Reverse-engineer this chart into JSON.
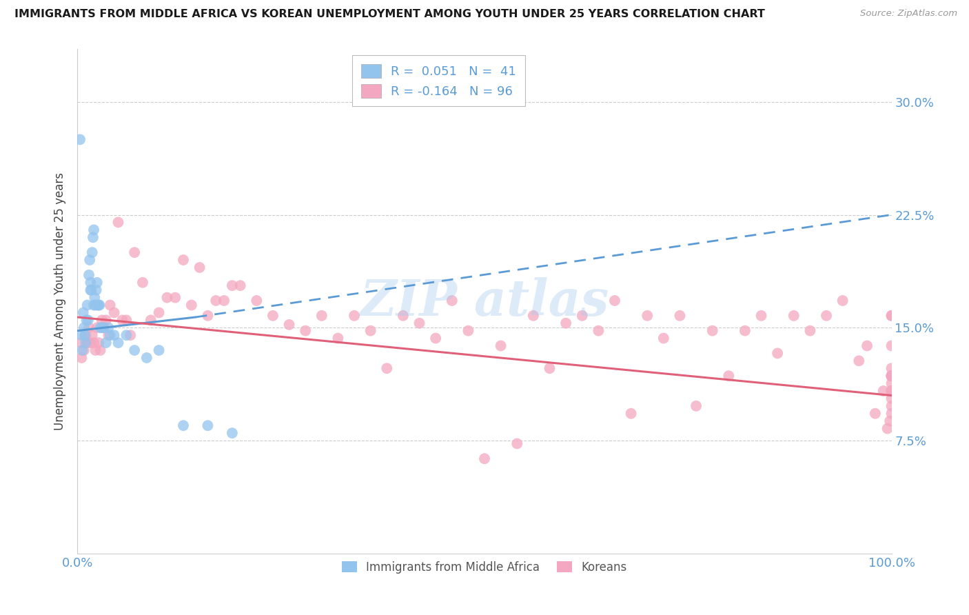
{
  "title": "IMMIGRANTS FROM MIDDLE AFRICA VS KOREAN UNEMPLOYMENT AMONG YOUTH UNDER 25 YEARS CORRELATION CHART",
  "source": "Source: ZipAtlas.com",
  "ylabel": "Unemployment Among Youth under 25 years",
  "ytick_labels": [
    "7.5%",
    "15.0%",
    "22.5%",
    "30.0%"
  ],
  "ytick_values": [
    0.075,
    0.15,
    0.225,
    0.3
  ],
  "ylim": [
    0.0,
    0.335
  ],
  "xlim": [
    0.0,
    1.0
  ],
  "legend_blue_text": "R =  0.051   N =  41",
  "legend_pink_text": "R = -0.164   N = 96",
  "blue_scatter_color": "#93C4EE",
  "pink_scatter_color": "#F4A7C0",
  "blue_line_color": "#5B9BD5",
  "pink_line_color": "#E0607A",
  "axis_tick_color": "#5B9BD5",
  "title_color": "#1A1A1A",
  "source_color": "#999999",
  "ylabel_color": "#444444",
  "grid_color": "#CCCCCC",
  "legend_border_color": "#BBBBBB",
  "watermark_color": "#AACCEE",
  "blue_scatter_x": [
    0.003,
    0.005,
    0.006,
    0.007,
    0.008,
    0.009,
    0.01,
    0.011,
    0.012,
    0.013,
    0.014,
    0.015,
    0.016,
    0.016,
    0.017,
    0.018,
    0.019,
    0.02,
    0.02,
    0.021,
    0.022,
    0.023,
    0.024,
    0.025,
    0.026,
    0.027,
    0.028,
    0.03,
    0.032,
    0.035,
    0.038,
    0.04,
    0.045,
    0.05,
    0.06,
    0.07,
    0.085,
    0.1,
    0.13,
    0.16,
    0.19
  ],
  "blue_scatter_y": [
    0.275,
    0.145,
    0.135,
    0.16,
    0.15,
    0.145,
    0.14,
    0.155,
    0.165,
    0.155,
    0.185,
    0.195,
    0.18,
    0.175,
    0.175,
    0.2,
    0.21,
    0.215,
    0.165,
    0.17,
    0.165,
    0.175,
    0.18,
    0.165,
    0.165,
    0.165,
    0.15,
    0.15,
    0.15,
    0.14,
    0.15,
    0.145,
    0.145,
    0.14,
    0.145,
    0.135,
    0.13,
    0.135,
    0.085,
    0.085,
    0.08
  ],
  "pink_scatter_x": [
    0.004,
    0.005,
    0.008,
    0.01,
    0.012,
    0.014,
    0.016,
    0.018,
    0.02,
    0.022,
    0.024,
    0.026,
    0.028,
    0.03,
    0.032,
    0.035,
    0.038,
    0.04,
    0.045,
    0.05,
    0.055,
    0.06,
    0.065,
    0.07,
    0.08,
    0.09,
    0.1,
    0.11,
    0.12,
    0.13,
    0.14,
    0.15,
    0.16,
    0.17,
    0.18,
    0.19,
    0.2,
    0.22,
    0.24,
    0.26,
    0.28,
    0.3,
    0.32,
    0.34,
    0.36,
    0.38,
    0.4,
    0.42,
    0.44,
    0.46,
    0.48,
    0.5,
    0.52,
    0.54,
    0.56,
    0.58,
    0.6,
    0.62,
    0.64,
    0.66,
    0.68,
    0.7,
    0.72,
    0.74,
    0.76,
    0.78,
    0.8,
    0.82,
    0.84,
    0.86,
    0.88,
    0.9,
    0.92,
    0.94,
    0.96,
    0.97,
    0.98,
    0.99,
    0.995,
    0.998,
    1.0,
    1.0,
    1.0,
    1.0,
    1.0,
    1.0,
    1.0,
    1.0,
    1.0,
    1.0,
    1.0,
    1.0,
    1.0,
    1.0,
    1.0,
    1.0
  ],
  "pink_scatter_y": [
    0.14,
    0.13,
    0.135,
    0.145,
    0.14,
    0.15,
    0.14,
    0.145,
    0.14,
    0.135,
    0.15,
    0.14,
    0.135,
    0.155,
    0.15,
    0.155,
    0.145,
    0.165,
    0.16,
    0.22,
    0.155,
    0.155,
    0.145,
    0.2,
    0.18,
    0.155,
    0.16,
    0.17,
    0.17,
    0.195,
    0.165,
    0.19,
    0.158,
    0.168,
    0.168,
    0.178,
    0.178,
    0.168,
    0.158,
    0.152,
    0.148,
    0.158,
    0.143,
    0.158,
    0.148,
    0.123,
    0.158,
    0.153,
    0.143,
    0.168,
    0.148,
    0.063,
    0.138,
    0.073,
    0.158,
    0.123,
    0.153,
    0.158,
    0.148,
    0.168,
    0.093,
    0.158,
    0.143,
    0.158,
    0.098,
    0.148,
    0.118,
    0.148,
    0.158,
    0.133,
    0.158,
    0.148,
    0.158,
    0.168,
    0.128,
    0.138,
    0.093,
    0.108,
    0.083,
    0.088,
    0.118,
    0.123,
    0.108,
    0.158,
    0.113,
    0.093,
    0.138,
    0.108,
    0.118,
    0.158,
    0.103,
    0.118,
    0.108,
    0.118,
    0.098,
    0.118
  ],
  "blue_line_x0": 0.0,
  "blue_line_x_solid_end": 0.145,
  "blue_line_x1": 1.0,
  "blue_line_y_at_0": 0.148,
  "blue_line_y_at_solid_end": 0.157,
  "blue_line_y_at_1": 0.225,
  "pink_line_x0": 0.0,
  "pink_line_x1": 1.0,
  "pink_line_y0": 0.157,
  "pink_line_y1": 0.105
}
